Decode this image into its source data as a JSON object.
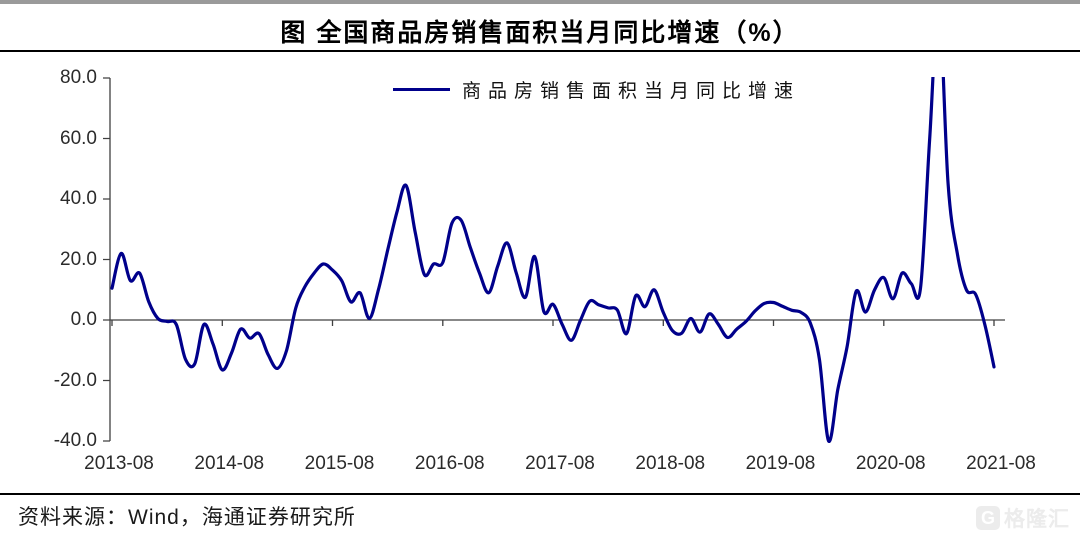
{
  "header": {
    "title": "图  全国商品房销售面积当月同比增速（%）"
  },
  "legend": {
    "label": "商品房销售面积当月同比增速"
  },
  "footer": {
    "source": "资料来源：Wind，海通证券研究所"
  },
  "watermark": {
    "logo_letter": "G",
    "text": "格隆汇"
  },
  "colors": {
    "line": "#00008B",
    "axis": "#404040",
    "tick_label": "#2b2b2b",
    "title_text": "#000000",
    "top_rule": "#9a9a9a",
    "rule": "#000000",
    "watermark": "#ececec"
  },
  "chart_data": {
    "type": "line",
    "title": "图 全国商品房销售面积当月同比增速（%）",
    "series_name": "商品房销售面积当月同比增速",
    "xlabel": "",
    "ylabel": "",
    "ylim": [
      -40,
      80
    ],
    "grid": false,
    "legend_position": "top-center",
    "x_axis_crosses_at": 0,
    "note": "2021-02 spike exceeds axis maximum and is clipped at 80",
    "y_tick_labels": [
      "80.0",
      "60.0",
      "40.0",
      "20.0",
      "0.0",
      "-20.0",
      "-40.0"
    ],
    "y_tick_values": [
      80,
      60,
      40,
      20,
      0,
      -20,
      -40
    ],
    "x_tick_labels": [
      "2013-08",
      "2014-08",
      "2015-08",
      "2016-08",
      "2017-08",
      "2018-08",
      "2019-08",
      "2020-08",
      "2021-08"
    ],
    "x": [
      "2013-08",
      "2013-09",
      "2013-10",
      "2013-11",
      "2013-12",
      "2014-01",
      "2014-02",
      "2014-03",
      "2014-04",
      "2014-05",
      "2014-06",
      "2014-07",
      "2014-08",
      "2014-09",
      "2014-10",
      "2014-11",
      "2014-12",
      "2015-01",
      "2015-02",
      "2015-03",
      "2015-04",
      "2015-05",
      "2015-06",
      "2015-07",
      "2015-08",
      "2015-09",
      "2015-10",
      "2015-11",
      "2015-12",
      "2016-01",
      "2016-02",
      "2016-03",
      "2016-04",
      "2016-05",
      "2016-06",
      "2016-07",
      "2016-08",
      "2016-09",
      "2016-10",
      "2016-11",
      "2016-12",
      "2017-01",
      "2017-02",
      "2017-03",
      "2017-04",
      "2017-05",
      "2017-06",
      "2017-07",
      "2017-08",
      "2017-09",
      "2017-10",
      "2017-11",
      "2017-12",
      "2018-01",
      "2018-02",
      "2018-03",
      "2018-04",
      "2018-05",
      "2018-06",
      "2018-07",
      "2018-08",
      "2018-09",
      "2018-10",
      "2018-11",
      "2018-12",
      "2019-01",
      "2019-02",
      "2019-03",
      "2019-04",
      "2019-05",
      "2019-06",
      "2019-07",
      "2019-08",
      "2019-09",
      "2019-10",
      "2019-11",
      "2019-12",
      "2020-01",
      "2020-02",
      "2020-03",
      "2020-04",
      "2020-05",
      "2020-06",
      "2020-07",
      "2020-08",
      "2020-09",
      "2020-10",
      "2020-11",
      "2020-12",
      "2021-01",
      "2021-02",
      "2021-03",
      "2021-04",
      "2021-05",
      "2021-06",
      "2021-07",
      "2021-08"
    ],
    "values": [
      10.5,
      22,
      13,
      15.5,
      6,
      0.5,
      -0.5,
      -1.5,
      -13,
      -14.5,
      -1.5,
      -8,
      -16.5,
      -11,
      -3,
      -6,
      -4.5,
      -11.5,
      -16,
      -10,
      4,
      11,
      15.5,
      18.5,
      16.5,
      13,
      6,
      9,
      0.5,
      10,
      23,
      35.5,
      44.5,
      29,
      15,
      18.5,
      19,
      32,
      33,
      24,
      15.5,
      9,
      18,
      25.5,
      15.5,
      7.5,
      21,
      2.8,
      5.2,
      -1.5,
      -6.7,
      0,
      6.2,
      5,
      4,
      3.3,
      -4.5,
      8,
      4.4,
      10,
      2.5,
      -3.5,
      -4.4,
      0.5,
      -4,
      2,
      -1.5,
      -5.8,
      -3,
      -0.5,
      3,
      5.5,
      5.8,
      4.5,
      3.2,
      2.5,
      -1,
      -13,
      -40,
      -23,
      -9,
      9.5,
      2.6,
      10,
      14,
      7,
      15.5,
      12,
      10.5,
      60,
      105,
      45,
      22,
      10,
      8.5,
      -1.5,
      -15.5
    ]
  }
}
